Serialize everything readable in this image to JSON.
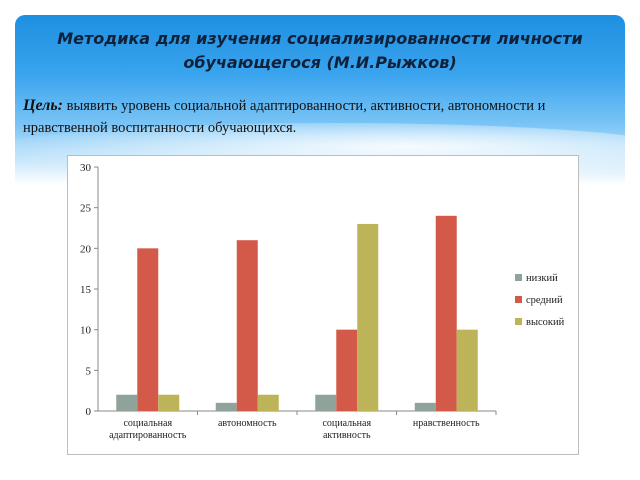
{
  "slide": {
    "title": "Методика для изучения социализированности личности обучающегося (М.И.Рыжков)",
    "goal_label": "Цель:",
    "goal_text": " выявить уровень социальной адаптированности, активности, автономности и нравственной воспитанности обучающихся."
  },
  "chart_data": {
    "type": "bar",
    "categories": [
      [
        "социальная",
        "адаптированность"
      ],
      [
        "автономность"
      ],
      [
        "социальная",
        "активность"
      ],
      [
        "нравственность"
      ]
    ],
    "series": [
      {
        "name": "низкий",
        "values": [
          2,
          1,
          2,
          1
        ],
        "color": "#8fa39a"
      },
      {
        "name": "средний",
        "values": [
          20,
          21,
          10,
          24
        ],
        "color": "#d35a48"
      },
      {
        "name": "высокий",
        "values": [
          2,
          2,
          23,
          10
        ],
        "color": "#bdb45a"
      }
    ],
    "ylim": [
      0,
      30
    ],
    "yticks": [
      0,
      5,
      10,
      15,
      20,
      25,
      30
    ],
    "grid": false,
    "legend": "right",
    "title": "",
    "xlabel": "",
    "ylabel": ""
  }
}
